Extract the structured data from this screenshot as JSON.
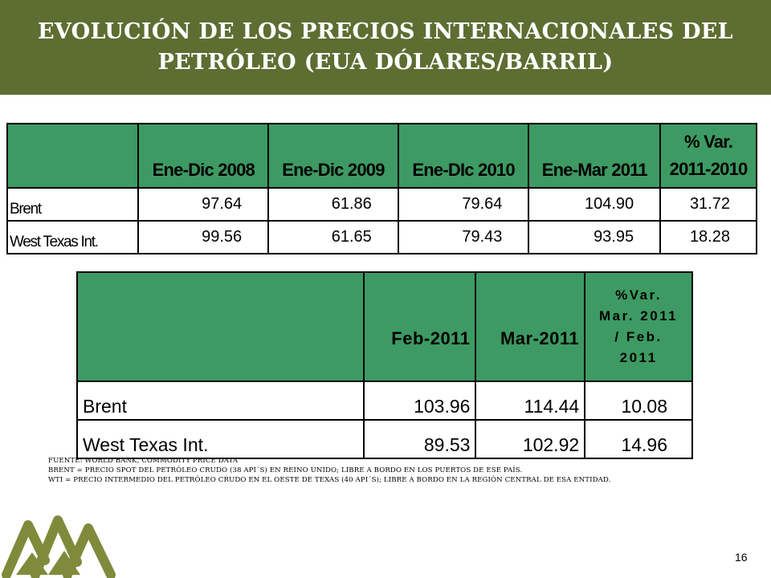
{
  "header": {
    "title_line1": "EVOLUCIÓN DE LOS PRECIOS INTERNACIONALES DEL",
    "title_line2": "PETRÓLEO (EUA DÓLARES/BARRIL)",
    "background_color": "#5e6d32"
  },
  "table1": {
    "columns": [
      "Ene-Dic 2008",
      "Ene-Dic 2009",
      "Ene-DIc 2010",
      "Ene-Mar 2011"
    ],
    "var_header_line1": "% Var.",
    "var_header_line2": "2011-2010",
    "rows": [
      {
        "label": "Brent",
        "values": [
          "97.64",
          "61.86",
          "79.64",
          "104.90",
          "31.72"
        ]
      },
      {
        "label": "West Texas Int.",
        "values": [
          "99.56",
          "61.65",
          "79.43",
          "93.95",
          "18.28"
        ]
      }
    ]
  },
  "table2": {
    "columns": [
      "Feb-2011",
      "Mar-2011"
    ],
    "var_header_line1": "%Var.",
    "var_header_line2": "Mar. 2011",
    "var_header_line3": "/ Feb.",
    "var_header_line4": "2011",
    "rows": [
      {
        "label": "Brent",
        "values": [
          "103.96",
          "114.44",
          "10.08"
        ]
      },
      {
        "label": "West Texas Int.",
        "values": [
          "89.53",
          "102.92",
          "14.96"
        ]
      }
    ]
  },
  "notes": {
    "source": "FUENTE: WORLD BANK, COMMODITY PRICE DATA",
    "brent": "BRENT = PRECIO SPOT DEL PETRÓLEO CRUDO (38 API´S) EN REINO UNIDO; LIBRE A BORDO EN LOS PUERTOS DE ESE PAÍS.",
    "wti": "WTI = PRECIO INTERMEDIO DEL PETRÓLEO CRUDO EN EL OESTE DE TEXAS (40 API´S); LIBRE A BORDO EN LA REGIÓN CENTRAL DE ESA ENTIDAD."
  },
  "footer": {
    "page_number": "16"
  },
  "colors": {
    "table_header": "#3d9a62",
    "logo": "#7f8b3a"
  },
  "icons": {
    "logo": "mountains-logo-icon"
  }
}
